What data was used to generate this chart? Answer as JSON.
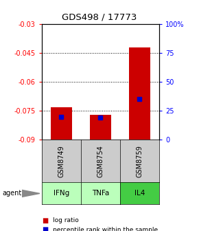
{
  "title": "GDS498 / 17773",
  "samples": [
    "GSM8749",
    "GSM8754",
    "GSM8759"
  ],
  "agents": [
    "IFNg",
    "TNFa",
    "IL4"
  ],
  "log_ratios": [
    -0.073,
    -0.077,
    -0.042
  ],
  "percentile_ranks": [
    20,
    19,
    35
  ],
  "ylim_left": [
    -0.09,
    -0.03
  ],
  "ylim_right": [
    0,
    100
  ],
  "yticks_left": [
    -0.09,
    -0.075,
    -0.06,
    -0.045,
    -0.03
  ],
  "yticks_right": [
    0,
    25,
    50,
    75,
    100
  ],
  "ytick_labels_left": [
    "-0.09",
    "-0.075",
    "-0.06",
    "-0.045",
    "-0.03"
  ],
  "ytick_labels_right": [
    "0",
    "25",
    "50",
    "75",
    "100%"
  ],
  "bar_color": "#cc0000",
  "percentile_color": "#0000cc",
  "sample_bg_color": "#cccccc",
  "agent_colors": [
    "#bbffbb",
    "#bbffbb",
    "#44cc44"
  ],
  "legend_log_ratio_color": "#cc0000",
  "legend_percentile_color": "#0000cc",
  "bar_width": 0.55
}
